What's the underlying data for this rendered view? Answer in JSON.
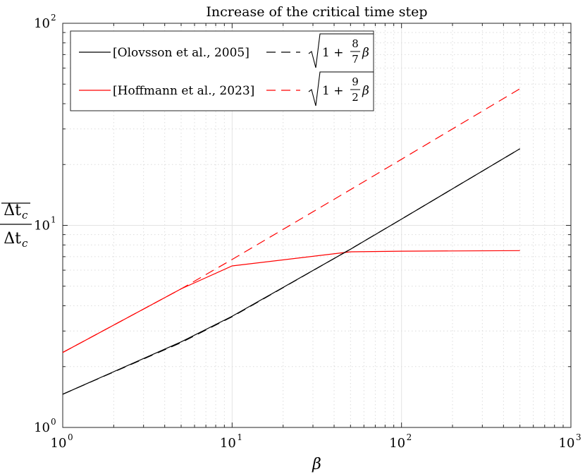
{
  "chart_data": {
    "type": "line",
    "title": "Increase of the critical time step",
    "xlabel": "β",
    "ylabel": {
      "numerator": "Δt",
      "denominator": "Δt",
      "subscript": "c"
    },
    "xscale": "log",
    "yscale": "log",
    "xlim": [
      1,
      1000
    ],
    "ylim": [
      1,
      100
    ],
    "grid": true,
    "minor_grid": true,
    "legend_position": "top-left",
    "x_ticks": [
      {
        "base": "10",
        "exp": "0"
      },
      {
        "base": "10",
        "exp": "1"
      },
      {
        "base": "10",
        "exp": "2"
      },
      {
        "base": "10",
        "exp": "3"
      }
    ],
    "y_ticks": [
      {
        "base": "10",
        "exp": "0"
      },
      {
        "base": "10",
        "exp": "1"
      },
      {
        "base": "10",
        "exp": "2"
      }
    ],
    "series": [
      {
        "name": "[Olovsson et al., 2005]",
        "color": "#000000",
        "dash": "solid",
        "x": [
          1,
          5,
          10,
          50,
          100,
          500
        ],
        "y": [
          1.46,
          2.65,
          3.55,
          7.62,
          10.74,
          23.93
        ]
      },
      {
        "name": "[Hoffmann et al., 2023]",
        "color": "#ff0000",
        "dash": "solid",
        "x": [
          1,
          5,
          10,
          50,
          100,
          500
        ],
        "y": [
          2.35,
          4.85,
          6.3,
          7.4,
          7.45,
          7.5
        ]
      },
      {
        "name": "sqrt(1+8/7 β)",
        "color": "#000000",
        "dash": "dashed",
        "formula": {
          "num": "8",
          "den": "7",
          "var": "β"
        },
        "x": [
          1,
          5,
          10,
          50,
          100,
          500
        ],
        "y": [
          1.46,
          2.63,
          3.53,
          7.63,
          10.74,
          23.93
        ]
      },
      {
        "name": "sqrt(1+9/2 β)",
        "color": "#ff0000",
        "dash": "dashed",
        "formula": {
          "num": "9",
          "den": "2",
          "var": "β"
        },
        "x": [
          1,
          5,
          10,
          50,
          100,
          500
        ],
        "y": [
          2.35,
          4.85,
          6.78,
          15.03,
          21.24,
          47.44
        ]
      }
    ]
  }
}
